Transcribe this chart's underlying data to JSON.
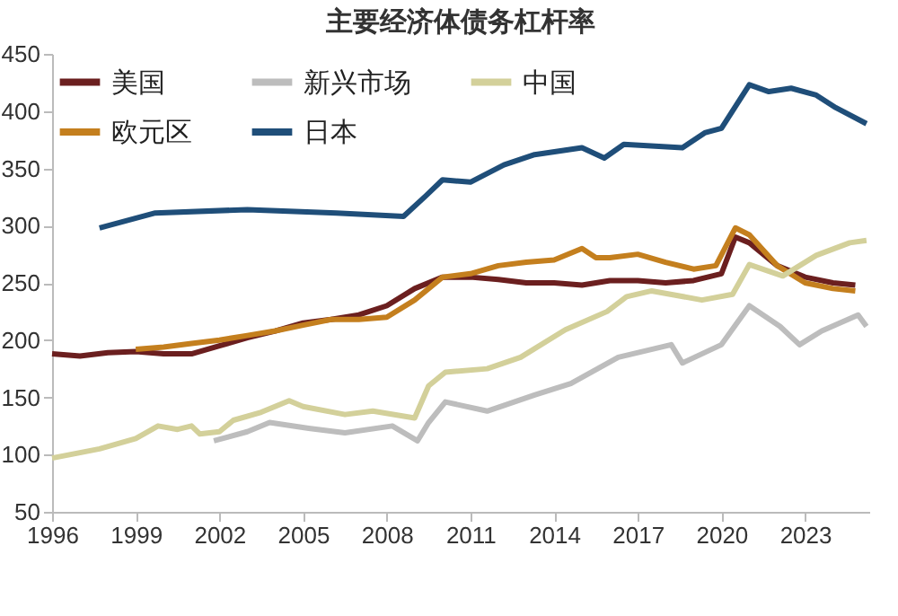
{
  "chart_data": {
    "type": "line",
    "title": "主要经济体债务杠杆率",
    "xlim": [
      1996,
      2025.3
    ],
    "xticks": [
      1996,
      1999,
      2002,
      2005,
      2008,
      2011,
      2014,
      2017,
      2020,
      2023
    ],
    "ylim": [
      50,
      450
    ],
    "yticks": [
      50,
      100,
      150,
      200,
      250,
      300,
      350,
      400,
      450
    ],
    "grid": false,
    "legend": "top left",
    "line_style": "solid",
    "marker": "none",
    "series": [
      {
        "name": "美国",
        "color": "#6b1f1f",
        "x": [
          1996,
          1997,
          1998,
          1999,
          2000,
          2001,
          2002,
          2003,
          2004,
          2005,
          2006,
          2007,
          2008,
          2009,
          2010,
          2011,
          2012,
          2013,
          2014,
          2015,
          2016,
          2017,
          2018,
          2019,
          2020,
          2020.5,
          2021,
          2022,
          2023,
          2024,
          2024.8
        ],
        "values": [
          188,
          186,
          189,
          190,
          188,
          188,
          195,
          202,
          208,
          215,
          218,
          222,
          230,
          245,
          255,
          255,
          253,
          250,
          250,
          248,
          252,
          252,
          250,
          252,
          258,
          290,
          285,
          265,
          255,
          250,
          248
        ]
      },
      {
        "name": "欧元区",
        "color": "#c47f1e",
        "x": [
          1999,
          2000,
          2001,
          2002,
          2003,
          2004,
          2005,
          2006,
          2007,
          2008,
          2009,
          2010,
          2011,
          2012,
          2013,
          2014,
          2015,
          2015.5,
          2016,
          2017,
          2018,
          2019,
          2019.8,
          2020.5,
          2021,
          2022,
          2023,
          2024,
          2024.8
        ],
        "values": [
          192,
          194,
          197,
          200,
          204,
          208,
          213,
          218,
          218,
          220,
          235,
          255,
          258,
          265,
          268,
          270,
          280,
          272,
          272,
          275,
          268,
          262,
          265,
          298,
          292,
          265,
          250,
          245,
          243
        ]
      },
      {
        "name": "新兴市场",
        "color": "#bdbdbd",
        "x": [
          2001.8,
          2003,
          2003.8,
          2005.2,
          2006.5,
          2008.2,
          2009.1,
          2009.5,
          2010.1,
          2011.6,
          2013.3,
          2014.6,
          2016.3,
          2018.2,
          2018.6,
          2020,
          2021,
          2022.1,
          2022.8,
          2023.6,
          2024.9,
          2025.2
        ],
        "values": [
          112,
          120,
          128,
          123,
          119,
          125,
          112,
          128,
          146,
          138,
          152,
          162,
          185,
          196,
          180,
          196,
          230,
          212,
          196,
          208,
          222,
          212
        ]
      },
      {
        "name": "日本",
        "color": "#1f4e79",
        "x": [
          1997.7,
          1999.7,
          2003,
          2006.2,
          2008.6,
          2009.4,
          2010,
          2011,
          2012.2,
          2013.3,
          2015,
          2015.8,
          2016.5,
          2018.6,
          2019.4,
          2020,
          2021,
          2021.7,
          2022.5,
          2023.4,
          2024.1,
          2025.2
        ],
        "values": [
          298,
          311,
          314,
          311,
          308,
          326,
          340,
          338,
          353,
          362,
          368,
          359,
          371,
          368,
          381,
          385,
          423,
          417,
          420,
          414,
          403,
          389
        ]
      },
      {
        "name": "中国",
        "color": "#d3d09a",
        "x": [
          1996,
          1997.7,
          1999,
          1999.8,
          2000.5,
          2001,
          2001.3,
          2002,
          2002.5,
          2003.5,
          2004.5,
          2005,
          2006.5,
          2007.5,
          2009,
          2009.5,
          2010.1,
          2011.6,
          2012.8,
          2014.4,
          2015.9,
          2016.6,
          2017.5,
          2019.3,
          2020.4,
          2021,
          2022.2,
          2023.4,
          2024.6,
          2025.2
        ],
        "values": [
          97,
          105,
          114,
          125,
          122,
          125,
          118,
          120,
          130,
          137,
          147,
          142,
          135,
          138,
          132,
          160,
          172,
          175,
          185,
          209,
          225,
          238,
          243,
          235,
          240,
          266,
          256,
          274,
          285,
          287
        ]
      }
    ]
  }
}
